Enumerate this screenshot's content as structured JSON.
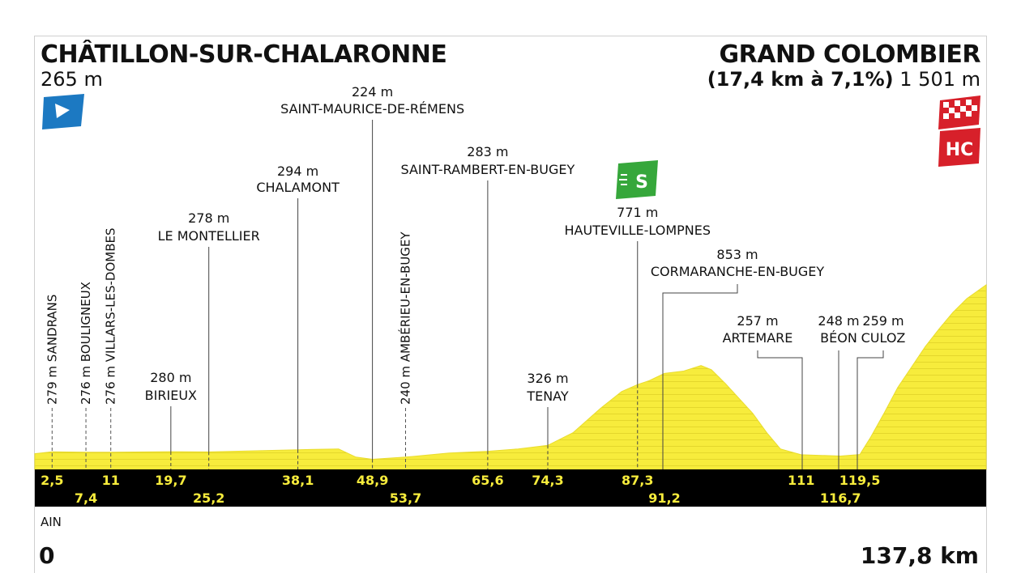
{
  "start": {
    "name": "CHÂTILLON-SUR-CHALARONNE",
    "altitude": "265 m"
  },
  "finish": {
    "name": "GRAND COLOMBIER",
    "climb": "(17,4 km à 7,1%)",
    "altitude": "1 501 m"
  },
  "region": "AIN",
  "distance_start": "0",
  "distance_end": "137,8 km",
  "icons": {
    "start": "start-flag-icon",
    "finish": "finish-checkered-flag-icon",
    "category": "HC",
    "sprint": "S"
  },
  "colors": {
    "profile": "#f7ec3c",
    "band": "#000000",
    "start_flag": "#1c79c2",
    "finish": "#d7202a",
    "sprint": "#36a73b"
  },
  "chart_data": {
    "type": "area",
    "x_range": [
      0,
      137.8
    ],
    "profile": {
      "x": [
        0,
        2.5,
        7.4,
        11,
        19.7,
        25.2,
        38.1,
        44,
        46.5,
        48.9,
        53.7,
        60,
        65.6,
        70,
        74.3,
        78,
        82,
        85,
        87.3,
        89,
        91.2,
        94,
        96.5,
        98,
        100,
        104,
        106,
        108,
        111,
        116.7,
        119.5,
        121,
        123,
        125,
        127,
        129,
        131,
        133,
        135,
        137.8
      ],
      "y": [
        265,
        279,
        276,
        276,
        280,
        278,
        294,
        300,
        240,
        224,
        240,
        270,
        283,
        300,
        326,
        420,
        600,
        720,
        771,
        800,
        853,
        870,
        910,
        880,
        780,
        560,
        420,
        300,
        257,
        248,
        259,
        380,
        560,
        750,
        900,
        1050,
        1180,
        1300,
        1400,
        1501
      ]
    },
    "towns": [
      {
        "km_label": "2,5",
        "km": 2.5,
        "alt": "279 m",
        "name": "SANDRANS",
        "vertical": true
      },
      {
        "km_label": "7,4",
        "km": 7.4,
        "alt": "276 m",
        "name": "BOULIGNEUX",
        "vertical": true
      },
      {
        "km_label": "11",
        "km": 11,
        "alt": "276 m",
        "name": "VILLARS-LES-DOMBES",
        "vertical": true
      },
      {
        "km_label": "19,7",
        "km": 19.7,
        "alt": "280 m",
        "name": "BIRIEUX"
      },
      {
        "km_label": "25,2",
        "km": 25.2,
        "alt": "278 m",
        "name": "LE MONTELLIER"
      },
      {
        "km_label": "38,1",
        "km": 38.1,
        "alt": "294 m",
        "name": "CHALAMONT"
      },
      {
        "km_label": "48,9",
        "km": 48.9,
        "alt": "224 m",
        "name": "SAINT-MAURICE-DE-RÉMENS"
      },
      {
        "km_label": "53,7",
        "km": 53.7,
        "alt": "240 m",
        "name": "AMBÉRIEU-EN-BUGEY",
        "vertical": true
      },
      {
        "km_label": "65,6",
        "km": 65.6,
        "alt": "283 m",
        "name": "SAINT-RAMBERT-EN-BUGEY"
      },
      {
        "km_label": "74,3",
        "km": 74.3,
        "alt": "326 m",
        "name": "TENAY"
      },
      {
        "km_label": "87,3",
        "km": 87.3,
        "alt": "771 m",
        "name": "HAUTEVILLE-LOMPNES",
        "sprint": true
      },
      {
        "km_label": "91,2",
        "km": 91.2,
        "alt": "853 m",
        "name": "CORMARANCHE-EN-BUGEY"
      },
      {
        "km_label": "111",
        "km": 111,
        "alt": "257 m",
        "name": "ARTEMARE"
      },
      {
        "km_label": "116,7",
        "km": 116.7,
        "alt": "248 m",
        "name": "BÉON"
      },
      {
        "km_label": "119,5",
        "km": 119.5,
        "alt": "259 m",
        "name": "CULOZ"
      }
    ]
  }
}
